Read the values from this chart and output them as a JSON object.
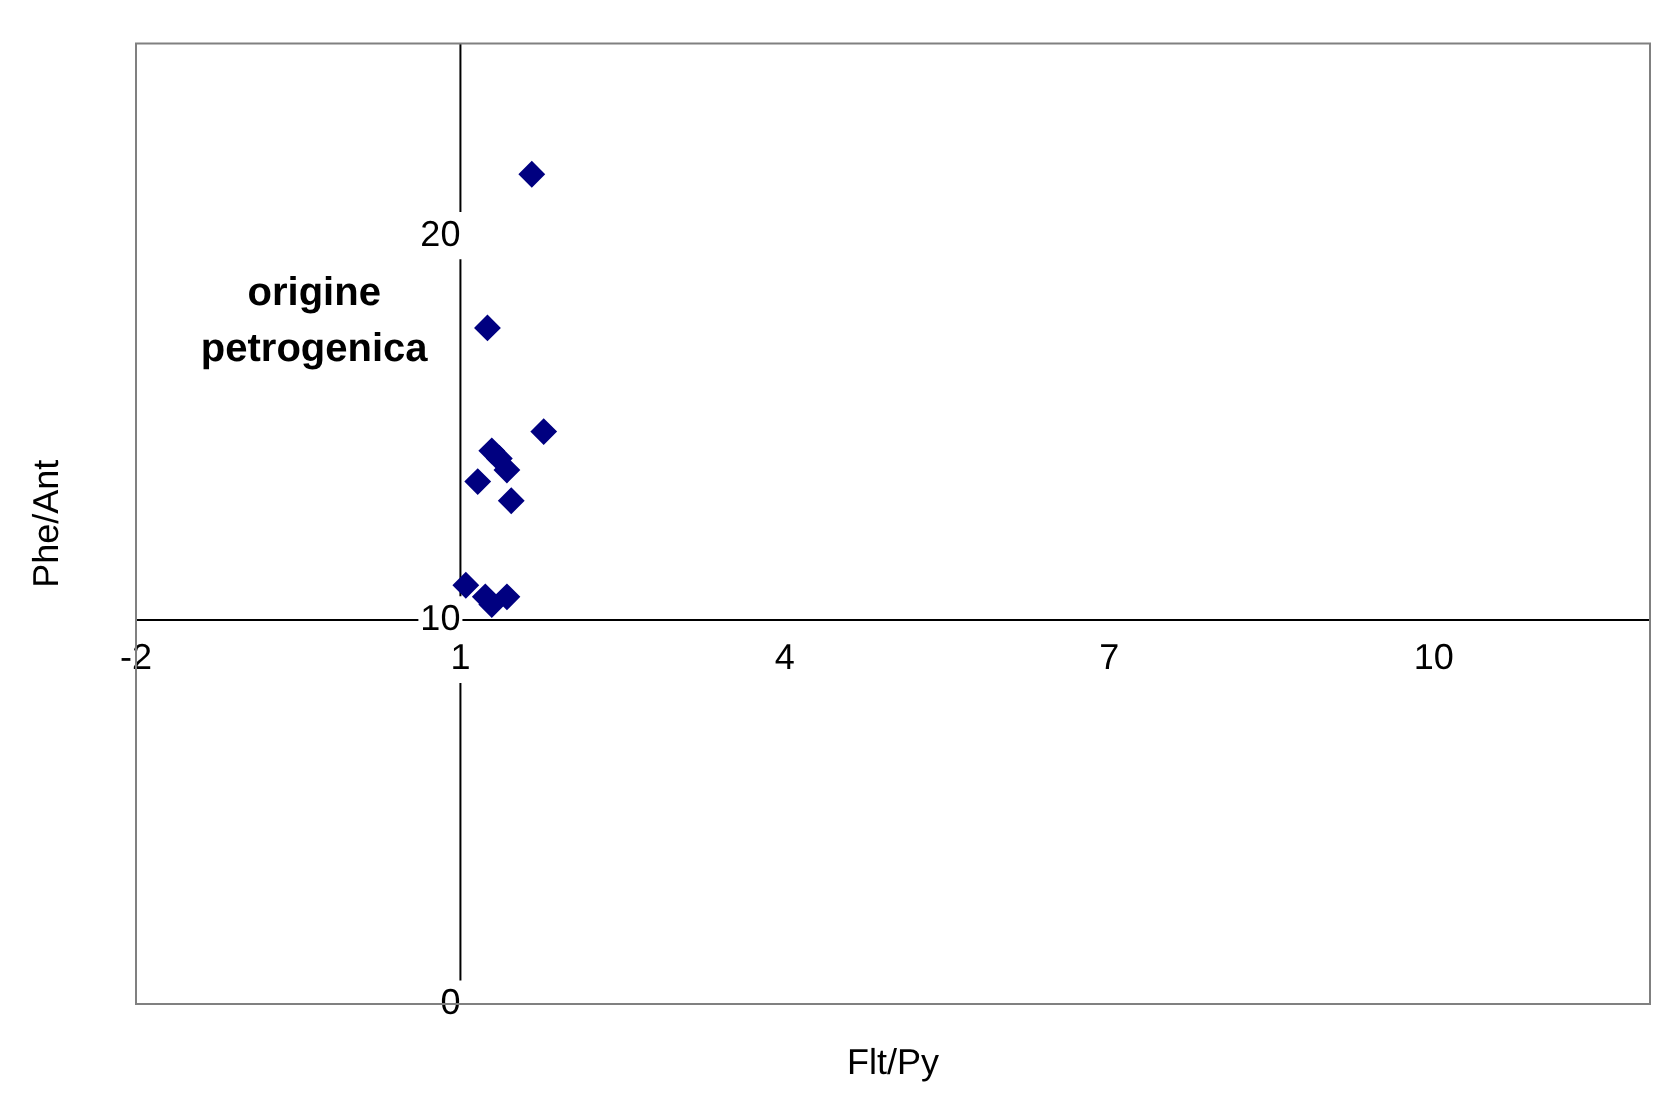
{
  "chart_data": {
    "type": "scatter",
    "xlabel": "Flt/Py",
    "ylabel": "Phe/Ant",
    "annotations": [
      "origine petrogenica"
    ],
    "series": [
      {
        "color": "#000080",
        "x": [
          1.66,
          1.25,
          1.77,
          1.29,
          1.36,
          1.43,
          1.16,
          1.47,
          1.05,
          1.23,
          1.43,
          1.29
        ],
        "values": [
          21.6,
          17.6,
          14.9,
          14.4,
          14.2,
          13.9,
          13.6,
          13.1,
          10.9,
          10.6,
          10.6,
          10.4
        ]
      }
    ],
    "marker": "diamond",
    "grid": false,
    "legend": false,
    "xlim": [
      -2,
      12
    ],
    "xticks": [
      -2,
      1,
      4,
      7,
      10
    ],
    "ylim": [
      0,
      25
    ],
    "yticks": [
      0,
      10,
      20
    ]
  }
}
